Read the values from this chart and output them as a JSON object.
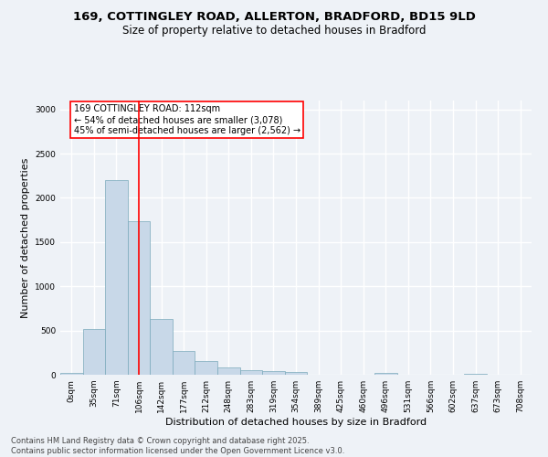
{
  "title_line1": "169, COTTINGLEY ROAD, ALLERTON, BRADFORD, BD15 9LD",
  "title_line2": "Size of property relative to detached houses in Bradford",
  "xlabel": "Distribution of detached houses by size in Bradford",
  "ylabel": "Number of detached properties",
  "categories": [
    "0sqm",
    "35sqm",
    "71sqm",
    "106sqm",
    "142sqm",
    "177sqm",
    "212sqm",
    "248sqm",
    "283sqm",
    "319sqm",
    "354sqm",
    "389sqm",
    "425sqm",
    "460sqm",
    "496sqm",
    "531sqm",
    "566sqm",
    "602sqm",
    "637sqm",
    "673sqm",
    "708sqm"
  ],
  "values": [
    20,
    520,
    2200,
    1740,
    630,
    270,
    150,
    80,
    55,
    40,
    35,
    5,
    5,
    5,
    20,
    5,
    5,
    5,
    15,
    5,
    5
  ],
  "bar_color": "#c8d8e8",
  "bar_edge_color": "#7aaabb",
  "vline_x": 3,
  "vline_color": "red",
  "annotation_text": "169 COTTINGLEY ROAD: 112sqm\n← 54% of detached houses are smaller (3,078)\n45% of semi-detached houses are larger (2,562) →",
  "annotation_box_color": "white",
  "annotation_box_edge_color": "red",
  "ylim": [
    0,
    3100
  ],
  "yticks": [
    0,
    500,
    1000,
    1500,
    2000,
    2500,
    3000
  ],
  "background_color": "#eef2f7",
  "grid_color": "white",
  "footer_line1": "Contains HM Land Registry data © Crown copyright and database right 2025.",
  "footer_line2": "Contains public sector information licensed under the Open Government Licence v3.0.",
  "title_fontsize": 9.5,
  "subtitle_fontsize": 8.5,
  "axis_label_fontsize": 8,
  "tick_fontsize": 6.5,
  "annotation_fontsize": 7,
  "footer_fontsize": 6
}
